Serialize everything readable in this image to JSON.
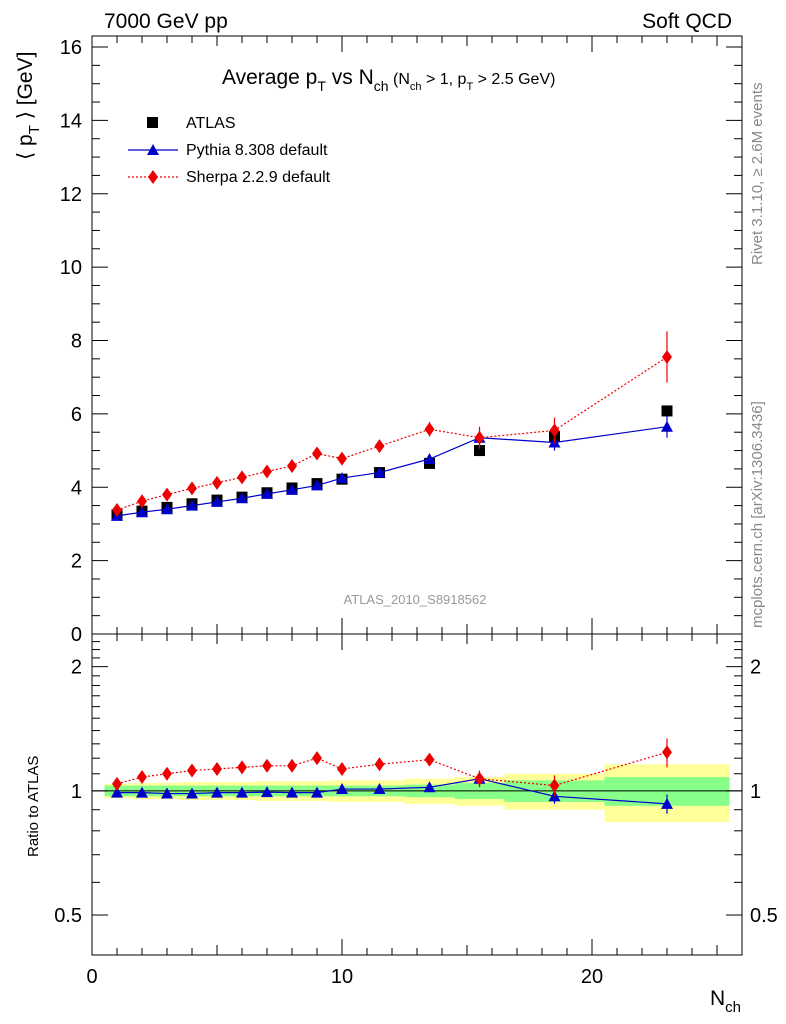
{
  "header": {
    "top_left": "7000 GeV pp",
    "top_right": "Soft QCD"
  },
  "title": {
    "main": "Average p",
    "main_sub": "T",
    "mid": " vs N",
    "mid_sub": "ch",
    "cond_open": " (N",
    "cond_sub1": "ch",
    "cond_mid": " > 1, p",
    "cond_sub2": "T",
    "cond_close": " > 2.5 GeV)"
  },
  "side_labels": {
    "rivet": "Rivet 3.1.10, ≥ 2.6M events",
    "mcplots": "mcplots.cern.ch [arXiv:1306.3436]"
  },
  "watermark": "ATLAS_2010_S8918562",
  "ratio_ylabel": "Ratio to ATLAS",
  "chart_data": {
    "type": "scatter",
    "x_axis": {
      "label": "N",
      "label_sub": "ch",
      "range": [
        0,
        26
      ],
      "major_ticks": [
        0,
        10,
        20
      ]
    },
    "main_y_axis": {
      "label_open": "⟨ p",
      "label_sub": "T",
      "label_close": " ⟩ [GeV]",
      "range": [
        0,
        16.3
      ],
      "major_ticks": [
        0,
        2,
        4,
        6,
        8,
        10,
        12,
        14,
        16
      ]
    },
    "ratio_y_axis": {
      "range": [
        0.4,
        2.4
      ],
      "log": true,
      "major_ticks": [
        0.5,
        1,
        2
      ]
    },
    "legend": {
      "position": "top-left",
      "entries": [
        "ATLAS",
        "Pythia 8.308 default",
        "Sherpa 2.2.9 default"
      ]
    },
    "series": [
      {
        "name": "ATLAS",
        "color": "#000000",
        "marker": "square",
        "x": [
          1,
          2,
          3,
          4,
          5,
          6,
          7,
          8,
          9,
          10,
          11.5,
          13.5,
          15.5,
          18.5,
          23
        ],
        "values": [
          3.25,
          3.35,
          3.45,
          3.55,
          3.65,
          3.73,
          3.85,
          3.98,
          4.1,
          4.22,
          4.4,
          4.65,
          5.0,
          5.38,
          6.08
        ]
      },
      {
        "name": "Pythia 8.308 default",
        "color": "#0000cc",
        "marker": "triangle",
        "line": "solid",
        "x": [
          1,
          2,
          3,
          4,
          5,
          6,
          7,
          8,
          9,
          10,
          11.5,
          13.5,
          15.5,
          18.5,
          23
        ],
        "values": [
          3.22,
          3.32,
          3.4,
          3.5,
          3.6,
          3.7,
          3.82,
          3.93,
          4.05,
          4.25,
          4.4,
          4.77,
          5.35,
          5.22,
          5.65
        ],
        "errors": [
          0.02,
          0.02,
          0.02,
          0.03,
          0.03,
          0.03,
          0.03,
          0.04,
          0.05,
          0.05,
          0.06,
          0.1,
          0.2,
          0.22,
          0.3
        ],
        "ratio": [
          0.99,
          0.99,
          0.985,
          0.985,
          0.99,
          0.99,
          0.993,
          0.99,
          0.99,
          1.01,
          1.01,
          1.02,
          1.07,
          0.97,
          0.93
        ],
        "ratio_errors": [
          0.005,
          0.005,
          0.006,
          0.007,
          0.007,
          0.008,
          0.008,
          0.01,
          0.012,
          0.012,
          0.014,
          0.02,
          0.04,
          0.04,
          0.05
        ]
      },
      {
        "name": "Sherpa 2.2.9 default",
        "color": "#ee0000",
        "marker": "diamond",
        "line": "dotted",
        "x": [
          1,
          2,
          3,
          4,
          5,
          6,
          7,
          8,
          9,
          10,
          11.5,
          13.5,
          15.5,
          18.5,
          23
        ],
        "values": [
          3.38,
          3.62,
          3.8,
          3.97,
          4.12,
          4.27,
          4.43,
          4.58,
          4.92,
          4.78,
          5.12,
          5.58,
          5.35,
          5.55,
          7.55
        ],
        "errors": [
          0.05,
          0.05,
          0.06,
          0.07,
          0.08,
          0.09,
          0.1,
          0.12,
          0.15,
          0.12,
          0.15,
          0.2,
          0.3,
          0.35,
          0.7
        ],
        "ratio": [
          1.04,
          1.08,
          1.1,
          1.12,
          1.13,
          1.14,
          1.15,
          1.15,
          1.2,
          1.13,
          1.16,
          1.19,
          1.07,
          1.03,
          1.24
        ],
        "ratio_errors": [
          0.01,
          0.012,
          0.015,
          0.015,
          0.016,
          0.018,
          0.02,
          0.025,
          0.03,
          0.025,
          0.03,
          0.04,
          0.05,
          0.06,
          0.1
        ]
      }
    ],
    "ratio_bands": {
      "edges": [
        0.5,
        1.5,
        2.5,
        3.5,
        4.5,
        5.5,
        6.5,
        7.5,
        8.5,
        9.5,
        10.5,
        12.5,
        14.5,
        16.5,
        20.5,
        25.5
      ],
      "inner": [
        0.03,
        0.03,
        0.03,
        0.03,
        0.03,
        0.03,
        0.03,
        0.03,
        0.03,
        0.03,
        0.03,
        0.035,
        0.045,
        0.06,
        0.08
      ],
      "outer": [
        0.04,
        0.045,
        0.045,
        0.05,
        0.05,
        0.05,
        0.055,
        0.055,
        0.055,
        0.06,
        0.06,
        0.07,
        0.08,
        0.1,
        0.16
      ],
      "inner_color": "#88ff88",
      "outer_color": "#ffff99"
    }
  }
}
